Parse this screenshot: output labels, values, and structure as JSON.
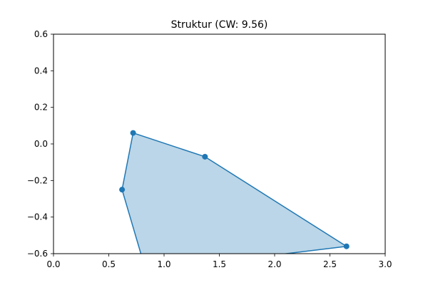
{
  "chart_data": {
    "type": "area",
    "title": "Struktur (CW: 9.56)",
    "xlabel": "",
    "ylabel": "",
    "xlim": [
      0.0,
      3.0
    ],
    "ylim": [
      -0.6,
      0.6
    ],
    "x_ticks": [
      "0.0",
      "0.5",
      "1.0",
      "1.5",
      "2.0",
      "2.5",
      "3.0"
    ],
    "y_ticks": [
      "−0.6",
      "−0.4",
      "−0.2",
      "0.0",
      "0.2",
      "0.4",
      "0.6"
    ],
    "grid": false,
    "series": [
      {
        "polygon": [
          {
            "x": 0.72,
            "y": 0.06
          },
          {
            "x": 1.37,
            "y": -0.07
          },
          {
            "x": 2.65,
            "y": -0.56
          },
          {
            "x": 1.97,
            "y": -0.61
          },
          {
            "x": 0.8,
            "y": -0.62
          },
          {
            "x": 0.62,
            "y": -0.25
          }
        ],
        "markers": [
          {
            "x": 0.72,
            "y": 0.06
          },
          {
            "x": 1.37,
            "y": -0.07
          },
          {
            "x": 2.65,
            "y": -0.56
          },
          {
            "x": 0.62,
            "y": -0.25
          }
        ]
      }
    ],
    "colors": {
      "line": "#1f77b4",
      "fill": "#1f77b4",
      "fill_opacity": 0.3,
      "axes": "#000000"
    }
  }
}
